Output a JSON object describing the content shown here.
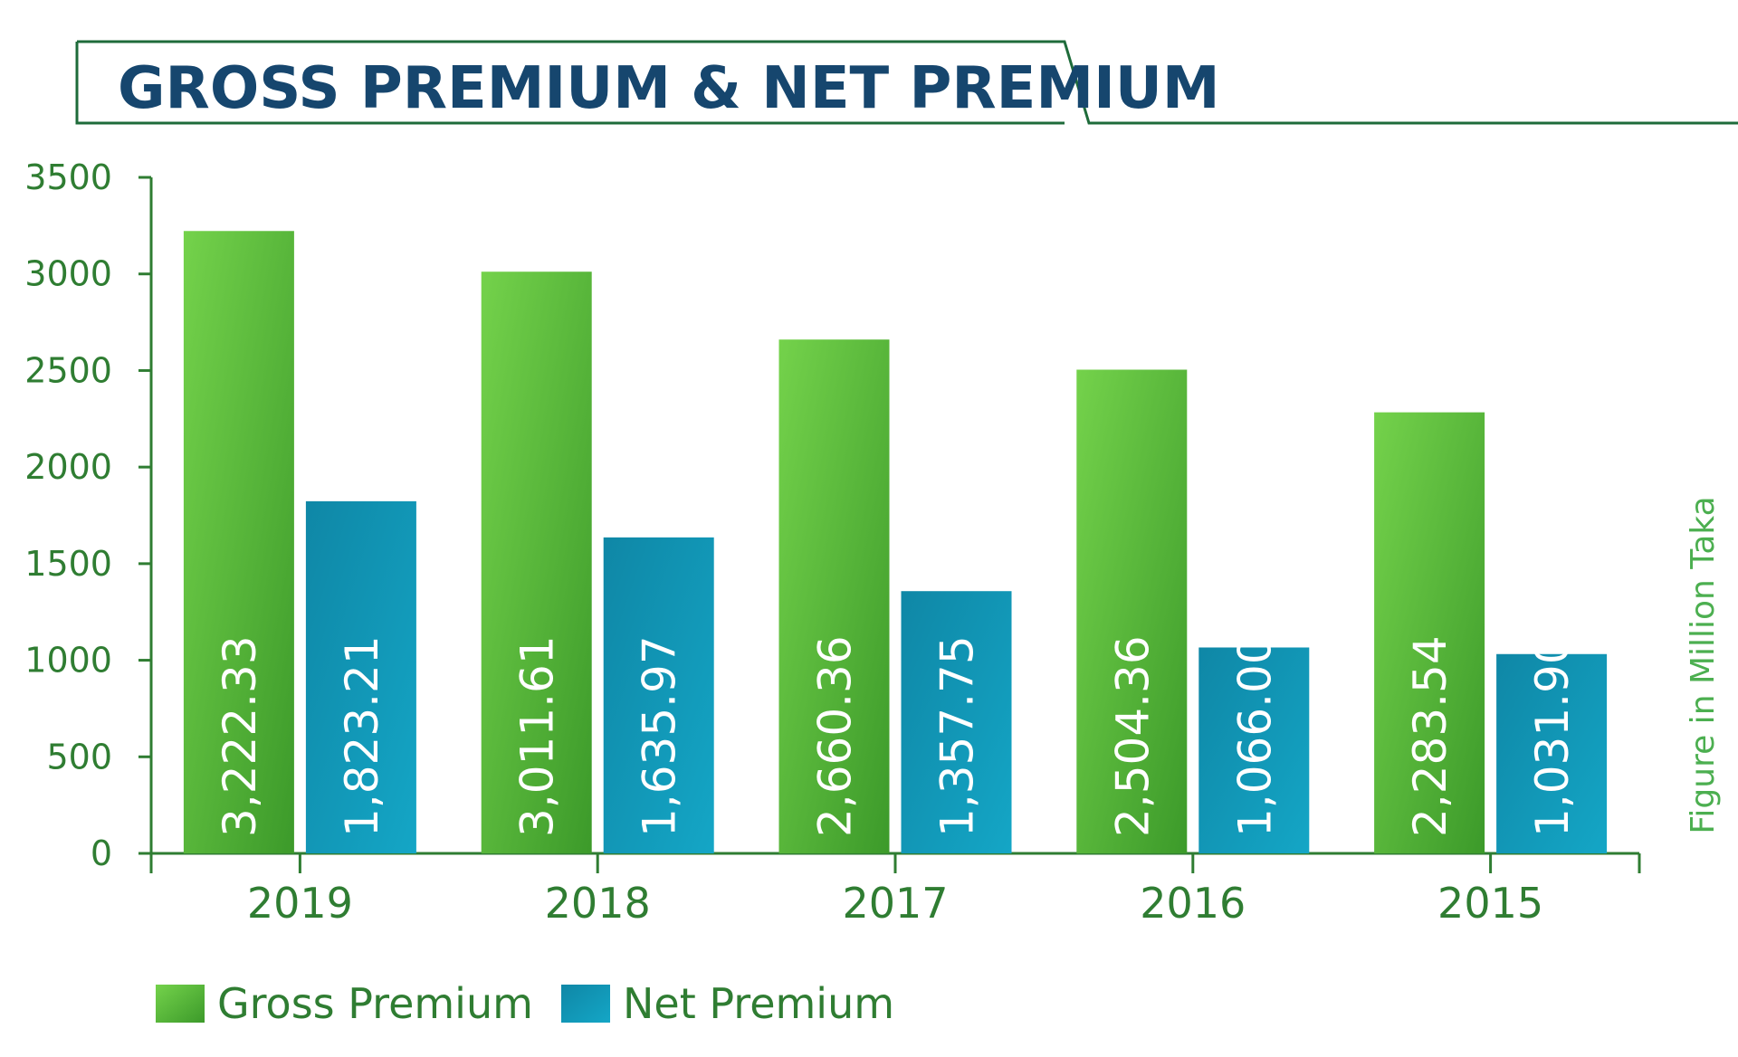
{
  "chart_data": {
    "type": "bar",
    "title": "GROSS PREMIUM & NET PREMIUM",
    "unit_label": "Figure in Million Taka",
    "categories": [
      "2019",
      "2018",
      "2017",
      "2016",
      "2015"
    ],
    "series": [
      {
        "name": "Gross Premium",
        "values": [
          3222.33,
          3011.61,
          2660.36,
          2504.36,
          2283.54
        ],
        "labels": [
          "3,222.33",
          "3,011.61",
          "2,660.36",
          "2,504.36",
          "2,283.54"
        ],
        "color": "#5cbf3a"
      },
      {
        "name": "Net Premium",
        "values": [
          1823.21,
          1635.97,
          1357.75,
          1066.0,
          1031.9
        ],
        "labels": [
          "1,823.21",
          "1,635.97",
          "1,357.75",
          "1,066.00",
          "1,031.90"
        ],
        "color": "#1b8fae"
      }
    ],
    "yticks": [
      "0",
      "500",
      "1000",
      "1500",
      "2000",
      "2500",
      "3000",
      "3500"
    ],
    "ylim": [
      0,
      3500
    ],
    "legend_position": "bottom-left",
    "grid": false
  },
  "colors": {
    "title": "#16466e",
    "frame": "#1e6b3a",
    "axis": "#2f7d32",
    "gross_light": "#72d14a",
    "gross_dark": "#3f9e2b",
    "net_light": "#14a3c2",
    "net_dark": "#126f90"
  }
}
